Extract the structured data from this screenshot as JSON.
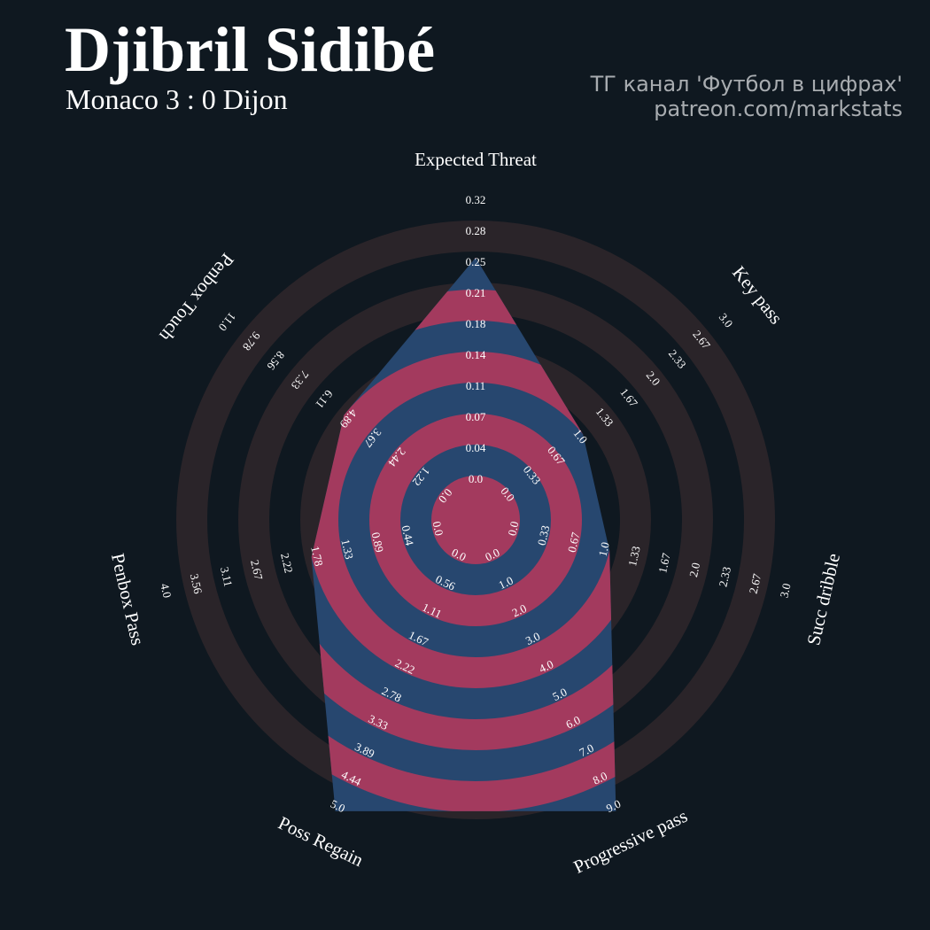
{
  "header": {
    "player_name": "Djibril Sidibé",
    "match": "Monaco 3 : 0 Dijon"
  },
  "credits": {
    "line1": "ТГ канал 'Футбол в цифрах'",
    "line2": "patreon.com/markstats"
  },
  "colors": {
    "background": "#0f1820",
    "outer_ring_band": "#2a2429",
    "inner_ring_band": "#a33a5e",
    "player_polygon": "#27476f",
    "text": "#ffffff",
    "credit_text": "#a8acb0"
  },
  "chart_data": {
    "type": "radar",
    "player": "Djibril Sidibé",
    "axes": [
      {
        "label": "Expected Threat",
        "value": 0.25,
        "range": [
          0.0,
          0.32
        ],
        "ticks": [
          "0.0",
          "0.04",
          "0.07",
          "0.11",
          "0.14",
          "0.18",
          "0.21",
          "0.25",
          "0.28",
          "0.32"
        ]
      },
      {
        "label": "Key pass",
        "value": 1.0,
        "range": [
          0.0,
          3.0
        ],
        "ticks": [
          "0.0",
          "0.33",
          "0.67",
          "1.0",
          "1.33",
          "1.67",
          "2.0",
          "2.33",
          "2.67",
          "3.0"
        ]
      },
      {
        "label": "Succ dribble",
        "value": 1.0,
        "range": [
          0.0,
          3.0
        ],
        "ticks": [
          "0.0",
          "0.33",
          "0.67",
          "1.0",
          "1.33",
          "1.67",
          "2.0",
          "2.33",
          "2.67",
          "3.0"
        ]
      },
      {
        "label": "Progressive pass",
        "value": 9.0,
        "range": [
          0.0,
          9.0
        ],
        "ticks": [
          "0.0",
          "1.0",
          "2.0",
          "3.0",
          "4.0",
          "5.0",
          "6.0",
          "7.0",
          "8.0",
          "9.0"
        ]
      },
      {
        "label": "Poss Regain",
        "value": 5.0,
        "range": [
          0.0,
          5.0
        ],
        "ticks": [
          "0.0",
          "0.56",
          "1.11",
          "1.67",
          "2.22",
          "2.78",
          "3.33",
          "3.89",
          "4.44",
          "5.0"
        ]
      },
      {
        "label": "Penbox Pass",
        "value": 1.78,
        "range": [
          0.0,
          4.0
        ],
        "ticks": [
          "0.0",
          "0.44",
          "0.89",
          "1.33",
          "1.78",
          "2.22",
          "2.67",
          "3.11",
          "3.56",
          "4.0"
        ]
      },
      {
        "label": "Penbox Touch",
        "value": 4.89,
        "range": [
          0.0,
          11.0
        ],
        "ticks": [
          "0.0",
          "1.22",
          "2.44",
          "3.67",
          "4.89",
          "6.11",
          "7.33",
          "8.56",
          "9.78",
          "11.0"
        ]
      }
    ]
  }
}
